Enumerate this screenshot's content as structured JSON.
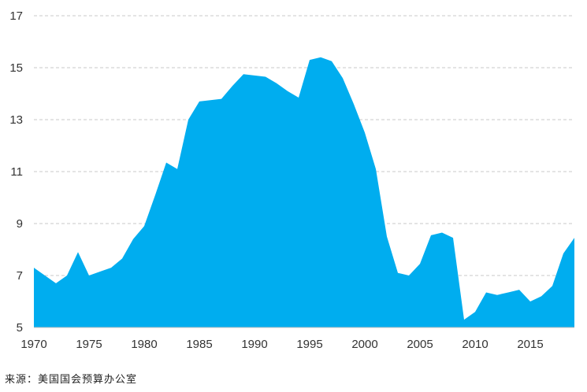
{
  "chart_data": {
    "type": "area",
    "title": "",
    "xlabel": "",
    "ylabel": "",
    "color": "#00adef",
    "grid": true,
    "ylim": [
      5,
      17
    ],
    "yticks": [
      5,
      7,
      9,
      11,
      13,
      15,
      17
    ],
    "xlim": [
      1970,
      2019
    ],
    "xticks": [
      1970,
      1975,
      1980,
      1985,
      1990,
      1995,
      2000,
      2005,
      2010,
      2015
    ],
    "x": [
      1970,
      1971,
      1972,
      1973,
      1974,
      1975,
      1976,
      1977,
      1978,
      1979,
      1980,
      1981,
      1982,
      1983,
      1984,
      1985,
      1986,
      1987,
      1988,
      1989,
      1990,
      1991,
      1992,
      1993,
      1994,
      1995,
      1996,
      1997,
      1998,
      1999,
      2000,
      2001,
      2002,
      2003,
      2004,
      2005,
      2006,
      2007,
      2008,
      2009,
      2010,
      2011,
      2012,
      2013,
      2014,
      2015,
      2016,
      2017,
      2018,
      2019
    ],
    "values": [
      7.3,
      7.0,
      6.7,
      7.0,
      7.9,
      7.0,
      7.15,
      7.3,
      7.65,
      8.4,
      8.9,
      10.1,
      11.35,
      11.1,
      13.0,
      13.7,
      13.75,
      13.8,
      14.3,
      14.75,
      14.7,
      14.65,
      14.4,
      14.1,
      13.85,
      15.3,
      15.4,
      15.25,
      14.6,
      13.6,
      12.5,
      11.1,
      8.5,
      7.1,
      7.0,
      7.45,
      8.55,
      8.65,
      8.45,
      5.3,
      5.6,
      6.35,
      6.25,
      6.35,
      6.45,
      6.0,
      6.2,
      6.6,
      7.85,
      8.45
    ]
  },
  "source": "来源：美国国会预算办公室"
}
